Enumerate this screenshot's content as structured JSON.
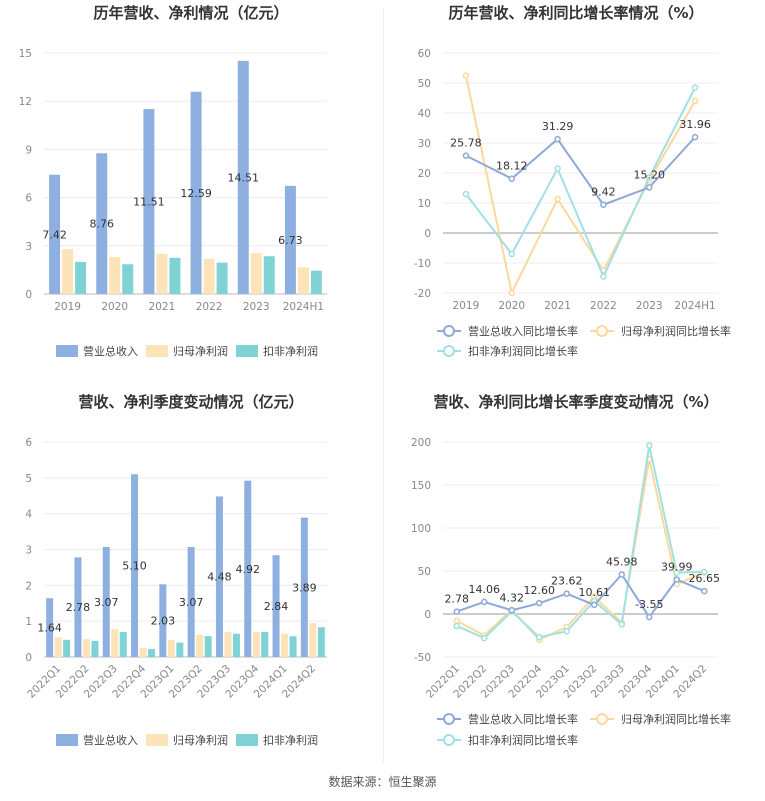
{
  "footer": "数据来源：恒生聚源",
  "colors": {
    "revenue": "#8eb0e0",
    "net_profit": "#fde4b8",
    "deducted_net_profit": "#7fd3d5",
    "rev_line": "#8ea9d8",
    "np_line": "#fdd89a",
    "dnp_line": "#9fe0e3"
  },
  "chart_data": [
    {
      "type": "bar",
      "title": "历年营收、净利情况（亿元）",
      "categories": [
        "2019",
        "2020",
        "2021",
        "2022",
        "2023",
        "2024H1"
      ],
      "ylim": [
        0,
        15
      ],
      "yticks": [
        0,
        3,
        6,
        9,
        12,
        15
      ],
      "series": [
        {
          "name": "营业总收入",
          "values": [
            7.42,
            8.76,
            11.51,
            12.59,
            14.51,
            6.73
          ]
        },
        {
          "name": "归母净利润",
          "values": [
            2.8,
            2.3,
            2.5,
            2.2,
            2.55,
            1.65
          ]
        },
        {
          "name": "扣非净利润",
          "values": [
            2.0,
            1.85,
            2.25,
            1.95,
            2.35,
            1.45
          ]
        }
      ],
      "labels": [
        "7.42",
        "8.76",
        "11.51",
        "12.59",
        "14.51",
        "6.73"
      ],
      "legend": "bottom"
    },
    {
      "type": "line",
      "title": "历年营收、净利同比增长率情况（%）",
      "categories": [
        "2019",
        "2020",
        "2021",
        "2022",
        "2023",
        "2024H1"
      ],
      "ylim": [
        -20,
        60
      ],
      "yticks": [
        -20,
        -10,
        0,
        10,
        20,
        30,
        40,
        50,
        60
      ],
      "series": [
        {
          "name": "营业总收入同比增长率",
          "values": [
            25.78,
            18.12,
            31.29,
            9.42,
            15.2,
            31.96
          ]
        },
        {
          "name": "归母净利润同比增长率",
          "values": [
            52.5,
            -20.0,
            11.3,
            -12.5,
            17.5,
            44.0
          ]
        },
        {
          "name": "扣非净利润同比增长率",
          "values": [
            13.0,
            -7.0,
            21.5,
            -14.5,
            18.5,
            48.5
          ]
        }
      ],
      "labels": [
        "25.78",
        "18.12",
        "31.29",
        "9.42",
        "15.20",
        "31.96"
      ],
      "legend": "bottom"
    },
    {
      "type": "bar",
      "title": "营收、净利季度变动情况（亿元）",
      "categories": [
        "2022Q1",
        "2022Q2",
        "2022Q3",
        "2022Q4",
        "2023Q1",
        "2023Q2",
        "2023Q3",
        "2023Q4",
        "2024Q1",
        "2024Q2"
      ],
      "ylim": [
        0,
        6
      ],
      "yticks": [
        0,
        1,
        2,
        3,
        4,
        5,
        6
      ],
      "series": [
        {
          "name": "营业总收入",
          "values": [
            1.64,
            2.78,
            3.07,
            5.1,
            2.03,
            3.07,
            4.48,
            4.92,
            2.84,
            3.89
          ]
        },
        {
          "name": "归母净利润",
          "values": [
            0.55,
            0.5,
            0.78,
            0.25,
            0.48,
            0.62,
            0.7,
            0.7,
            0.65,
            0.95
          ]
        },
        {
          "name": "扣非净利润",
          "values": [
            0.48,
            0.45,
            0.7,
            0.22,
            0.4,
            0.58,
            0.65,
            0.7,
            0.58,
            0.83
          ]
        }
      ],
      "labels": [
        "1.64",
        "2.78",
        "3.07",
        "5.10",
        "2.03",
        "3.07",
        "4.48",
        "4.92",
        "2.84",
        "3.89"
      ],
      "legend": "bottom"
    },
    {
      "type": "line",
      "title": "营收、净利同比增长率季度变动情况（%）",
      "categories": [
        "2022Q1",
        "2022Q2",
        "2022Q3",
        "2022Q4",
        "2023Q1",
        "2023Q2",
        "2023Q3",
        "2023Q4",
        "2024Q1",
        "2024Q2"
      ],
      "ylim": [
        -50,
        200
      ],
      "yticks": [
        -50,
        0,
        50,
        100,
        150,
        200
      ],
      "series": [
        {
          "name": "营业总收入同比增长率",
          "values": [
            2.78,
            14.06,
            4.32,
            12.6,
            23.62,
            10.61,
            45.98,
            -3.55,
            39.99,
            26.65
          ]
        },
        {
          "name": "归母净利润同比增长率",
          "values": [
            -8.0,
            -25.0,
            5.0,
            -30.0,
            -15.0,
            20.0,
            -10.0,
            180.0,
            35.0,
            48.0
          ]
        },
        {
          "name": "扣非净利润同比增长率",
          "values": [
            -14.0,
            -28.0,
            3.0,
            -27.0,
            -20.0,
            15.0,
            -12.0,
            196.0,
            48.0,
            49.0
          ]
        }
      ],
      "labels": [
        "2.78",
        "14.06",
        "4.32",
        "12.60",
        "23.62",
        "10.61",
        "45.98",
        "-3.55",
        "39.99",
        "26.65"
      ],
      "legend": "bottom"
    }
  ]
}
